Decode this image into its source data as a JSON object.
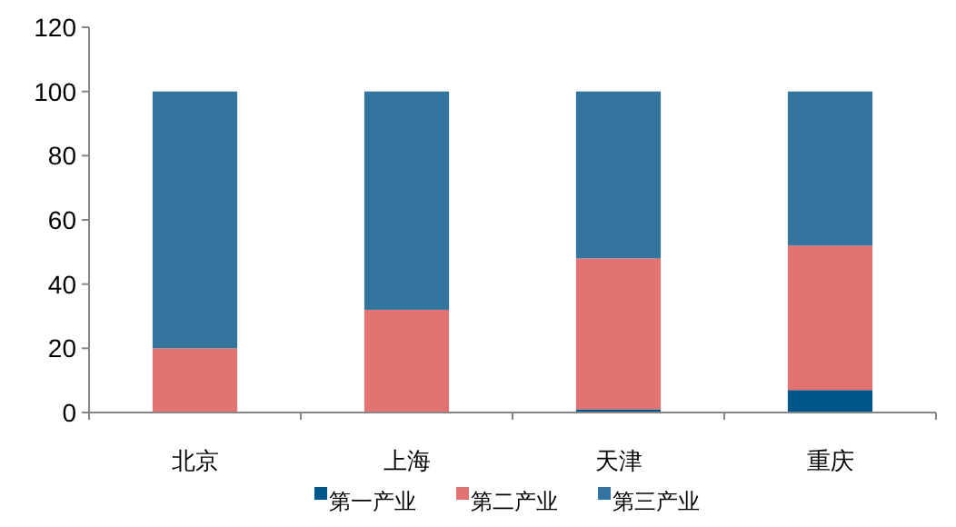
{
  "chart_data": {
    "type": "bar",
    "stacked": true,
    "categories": [
      "北京",
      "上海",
      "天津",
      "重庆"
    ],
    "series": [
      {
        "name": "第一产业",
        "color": "#00558a",
        "values": [
          0,
          0,
          1,
          7
        ]
      },
      {
        "name": "第二产业",
        "color": "#e37372",
        "values": [
          20,
          32,
          47,
          45
        ]
      },
      {
        "name": "第三产业",
        "color": "#33759f",
        "values": [
          80,
          68,
          52,
          48
        ]
      }
    ],
    "ylim": [
      0,
      120
    ],
    "yticks": [
      0,
      20,
      40,
      60,
      80,
      100,
      120
    ],
    "grid": false,
    "legend": "bottom"
  }
}
